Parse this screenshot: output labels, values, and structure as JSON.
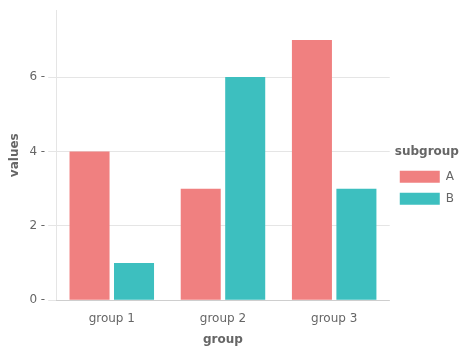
{
  "chart_data": {
    "type": "bar",
    "categories": [
      "group 1",
      "group 2",
      "group 3"
    ],
    "series": [
      {
        "name": "A",
        "color": "#F08080",
        "values": [
          4,
          3,
          7
        ]
      },
      {
        "name": "B",
        "color": "#3DBFBF",
        "values": [
          1,
          6,
          3
        ]
      }
    ],
    "x_label": "group",
    "y_label": "values",
    "legend_title": "subgroup",
    "ylim": [
      0,
      7.8
    ],
    "yticks": [
      {
        "value": 0,
        "label": "0 -"
      },
      {
        "value": 2,
        "label": "2 -"
      },
      {
        "value": 4,
        "label": "4 -"
      },
      {
        "value": 6,
        "label": "6 -"
      }
    ],
    "grid": true,
    "legend": "right"
  }
}
